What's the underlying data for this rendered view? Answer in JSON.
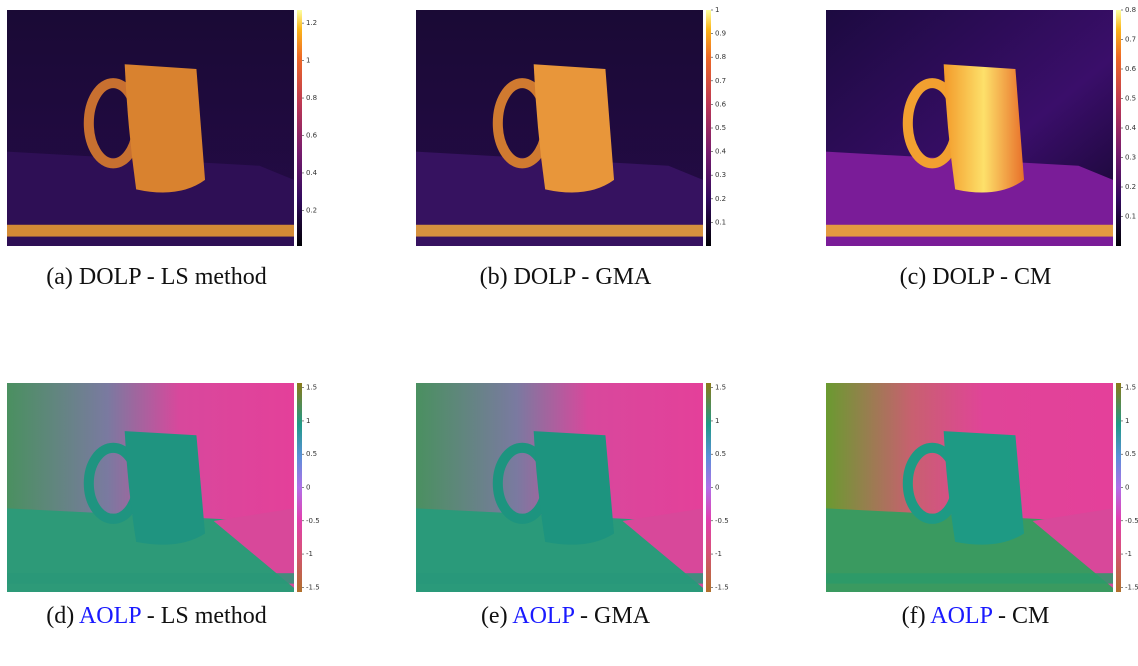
{
  "panels": [
    {
      "kind": "dolp-ls",
      "caption": {
        "label": "(a)",
        "quantity": "DOLP",
        "method": "- LS method"
      },
      "colorbar": {
        "clim": [
          0.01,
          1.27
        ],
        "ticks": [
          1.2,
          1,
          0.8,
          0.6,
          0.4,
          0.2
        ]
      }
    },
    {
      "kind": "dolp-gma",
      "caption": {
        "label": "(b)",
        "quantity": "DOLP",
        "method": "- GMA"
      },
      "colorbar": {
        "clim": [
          0,
          1
        ],
        "ticks": [
          1,
          0.9,
          0.8,
          0.7,
          0.6,
          0.5,
          0.4,
          0.3,
          0.2,
          0.1
        ]
      }
    },
    {
      "kind": "dolp-cm",
      "caption": {
        "label": "(c)",
        "quantity": "DOLP",
        "method": "- CM"
      },
      "colorbar": {
        "clim": [
          0,
          0.8
        ],
        "ticks": [
          0.8,
          0.7,
          0.6,
          0.5,
          0.4,
          0.3,
          0.2,
          0.1
        ]
      }
    },
    {
      "kind": "aolp-ls",
      "caption": {
        "label": "(d)",
        "quantity": "AOLP",
        "method": "- LS method"
      },
      "colorbar": {
        "clim": [
          -1.57,
          1.57
        ],
        "ticks": [
          1.5,
          1,
          0.5,
          0,
          -0.5,
          -1,
          -1.5
        ]
      }
    },
    {
      "kind": "aolp-gma",
      "caption": {
        "label": "(e)",
        "quantity": "AOLP",
        "method": "- GMA"
      },
      "colorbar": {
        "clim": [
          -1.57,
          1.57
        ],
        "ticks": [
          1.5,
          1,
          0.5,
          0,
          -0.5,
          -1,
          -1.5
        ]
      }
    },
    {
      "kind": "aolp-cm",
      "caption": {
        "label": "(f)",
        "quantity": "AOLP",
        "method": "- CM"
      },
      "colorbar": {
        "clim": [
          -1.57,
          1.57
        ],
        "ticks": [
          1.5,
          1,
          0.5,
          0,
          -0.5,
          -1,
          -1.5
        ]
      }
    }
  ]
}
